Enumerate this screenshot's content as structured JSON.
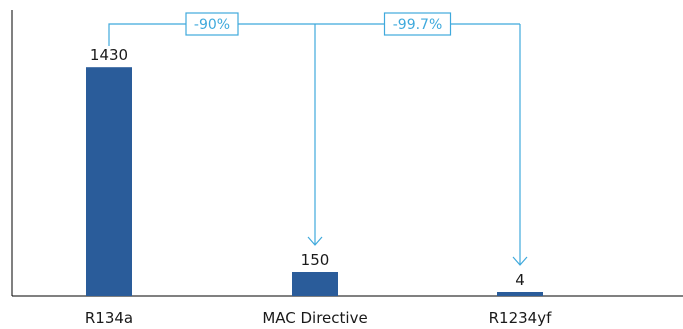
{
  "chart_data": {
    "type": "bar",
    "categories": [
      "R134a",
      "MAC Directive",
      "R1234yf"
    ],
    "values": [
      1430,
      150,
      4
    ],
    "data_labels": [
      "1430",
      "150",
      "4"
    ],
    "title": "",
    "xlabel": "",
    "ylabel": "",
    "ylim": [
      0,
      1600
    ],
    "grid": false,
    "legend": "none",
    "annotations": [
      {
        "from": "R134a",
        "to": "MAC Directive",
        "label": "-90%"
      },
      {
        "from": "R134a",
        "to": "R1234yf",
        "label": "-99.7%"
      }
    ]
  },
  "colors": {
    "bar": "#2a5c9a",
    "annotation": "#3fa9dc",
    "axis": "#000000"
  }
}
